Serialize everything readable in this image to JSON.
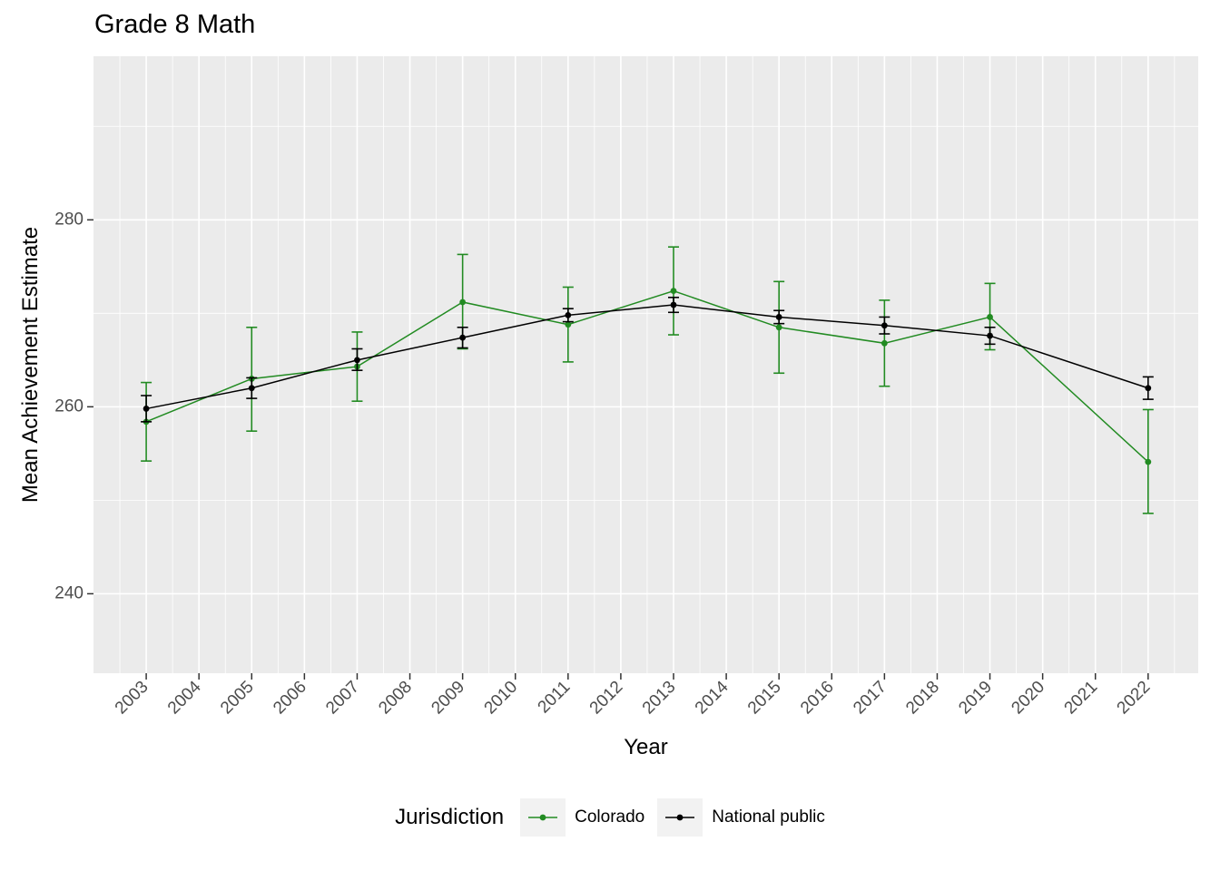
{
  "title": "Grade 8 Math",
  "style": {
    "panel_bg": "#EBEBEB",
    "grid_color": "#FFFFFF",
    "tick_label_color": "#4D4D4D",
    "tick_mark_color": "#333333",
    "colorado_green": "#228B22",
    "national_black": "#000000"
  },
  "chart_data": {
    "type": "line",
    "title": "Grade 8 Math",
    "xlabel": "Year",
    "ylabel": "Mean Achievement Estimate",
    "legend_title": "Jurisdiction",
    "legend_position": "bottom",
    "grid": true,
    "error_bars": true,
    "xlim": [
      2002.0,
      2022.95
    ],
    "ylim": [
      231.5,
      297.5
    ],
    "x_ticks": [
      2003,
      2004,
      2005,
      2006,
      2007,
      2008,
      2009,
      2010,
      2011,
      2012,
      2013,
      2014,
      2015,
      2016,
      2017,
      2018,
      2019,
      2020,
      2021,
      2022
    ],
    "y_ticks": [
      240,
      260,
      280
    ],
    "y_minor_ticks": [
      250,
      270,
      290
    ],
    "series": [
      {
        "name": "Colorado",
        "color": "#228B22",
        "x": [
          2003,
          2005,
          2007,
          2009,
          2011,
          2013,
          2015,
          2017,
          2019,
          2022
        ],
        "y": [
          258.4,
          263.0,
          264.3,
          271.2,
          268.8,
          272.4,
          268.5,
          266.8,
          269.6,
          254.1
        ],
        "y_low": [
          254.2,
          257.4,
          260.6,
          266.2,
          264.8,
          267.7,
          263.6,
          262.2,
          266.1,
          248.6
        ],
        "y_high": [
          262.6,
          268.5,
          268.0,
          276.3,
          272.8,
          277.1,
          273.4,
          271.4,
          273.2,
          259.7
        ]
      },
      {
        "name": "National public",
        "color": "#000000",
        "x": [
          2003,
          2005,
          2007,
          2009,
          2011,
          2013,
          2015,
          2017,
          2019,
          2022
        ],
        "y": [
          259.8,
          262.0,
          265.0,
          267.4,
          269.8,
          270.9,
          269.6,
          268.7,
          267.6,
          262.0
        ],
        "y_low": [
          258.4,
          260.9,
          263.9,
          266.3,
          269.1,
          270.1,
          268.9,
          267.8,
          266.7,
          260.8
        ],
        "y_high": [
          261.2,
          263.1,
          266.2,
          268.5,
          270.5,
          271.7,
          270.3,
          269.6,
          268.5,
          263.2
        ]
      }
    ]
  }
}
